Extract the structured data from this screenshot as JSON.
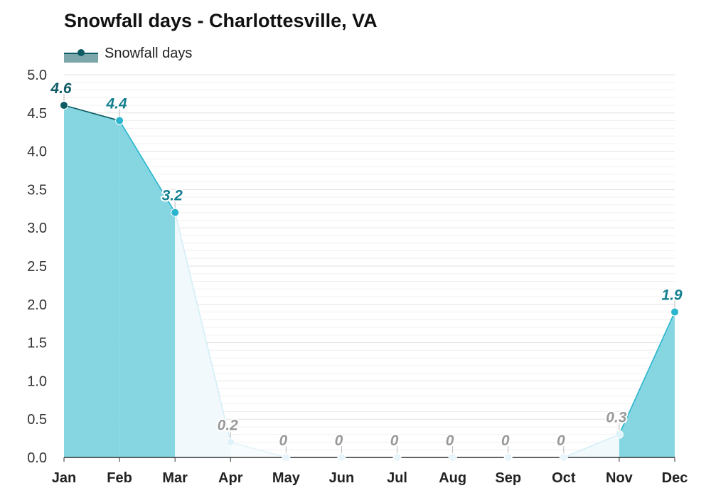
{
  "chart_data": {
    "type": "area",
    "title": "Snowfall days - Charlottesville, VA",
    "categories": [
      "Jan",
      "Feb",
      "Mar",
      "Apr",
      "May",
      "Jun",
      "Jul",
      "Aug",
      "Sep",
      "Oct",
      "Nov",
      "Dec"
    ],
    "series": [
      {
        "name": "Snowfall days",
        "values": [
          4.6,
          4.4,
          3.2,
          0.2,
          0,
          0,
          0,
          0,
          0,
          0,
          0.3,
          1.9
        ]
      }
    ],
    "value_labels": [
      "4.6",
      "4.4",
      "3.2",
      "0.2",
      "0",
      "0",
      "0",
      "0",
      "0",
      "0",
      "0.3",
      "1.9"
    ],
    "y_ticks": [
      "0.0",
      "0.5",
      "1.0",
      "1.5",
      "2.0",
      "2.5",
      "3.0",
      "3.5",
      "4.0",
      "4.5",
      "5.0"
    ],
    "ylim": [
      0,
      5
    ],
    "xlabel": "",
    "ylabel": "",
    "grid": true,
    "legend": "top-left",
    "colors": {
      "legend_fill": "#7ba6aa",
      "legend_line": "#0d5c63",
      "grid": "#e2e2e2",
      "axis": "#333333"
    }
  }
}
